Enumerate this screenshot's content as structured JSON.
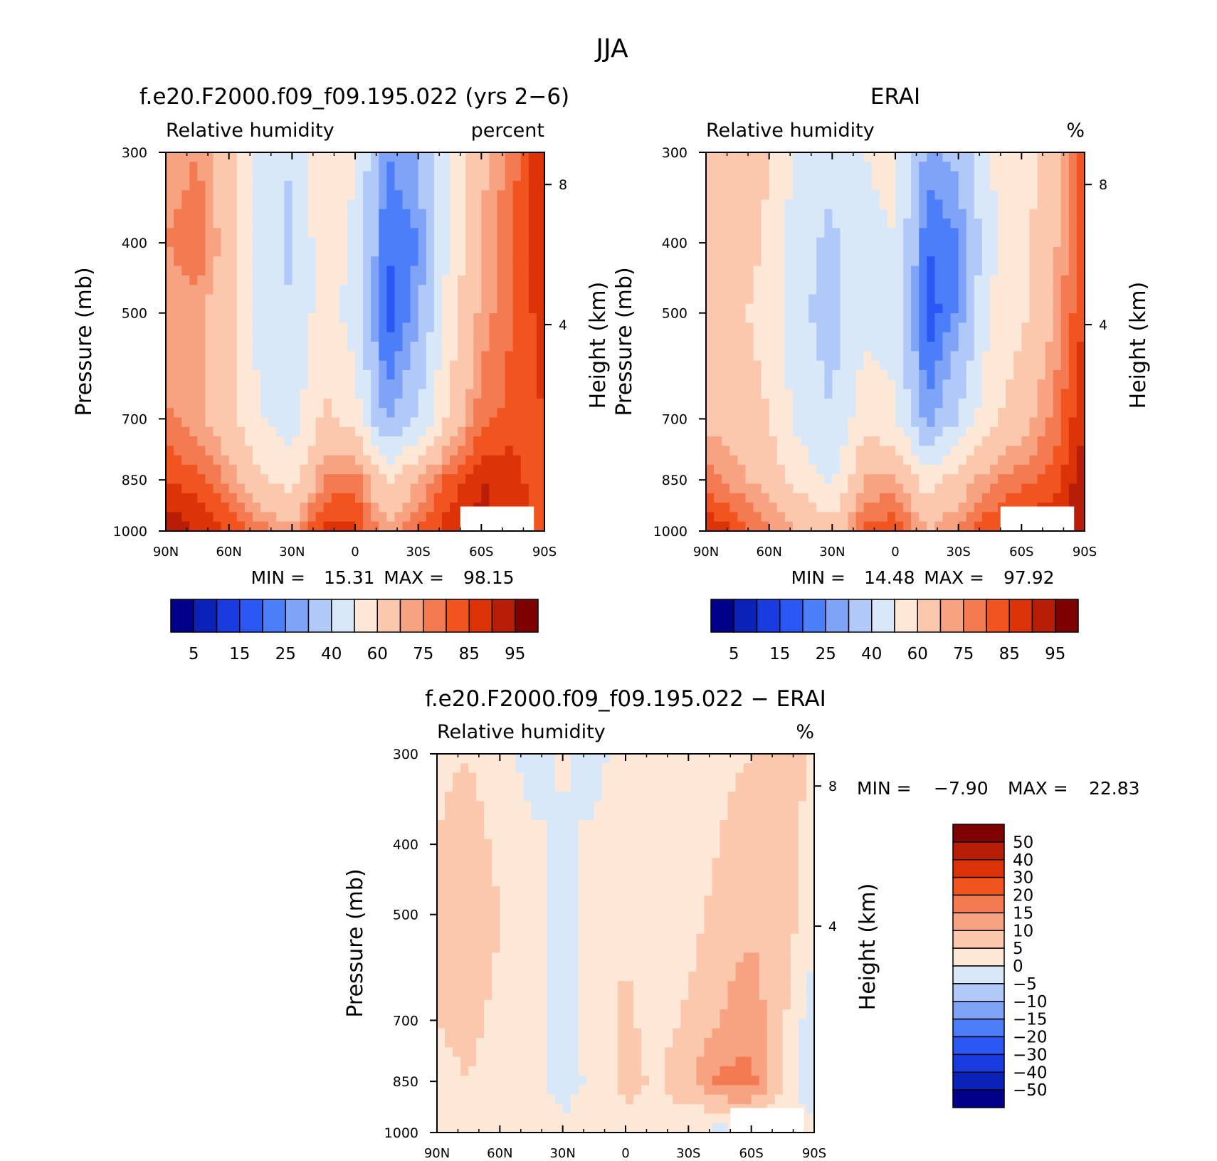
{
  "figure": {
    "title": "JJA"
  },
  "colormaps": {
    "abs": [
      "#00008a",
      "#0a22b8",
      "#1a3be0",
      "#2b58f5",
      "#4c7ef9",
      "#7ea3f7",
      "#b0c9f8",
      "#d8e8f9",
      "#fde8d8",
      "#fbc8ad",
      "#f7a382",
      "#f47a52",
      "#f1541f",
      "#dd3309",
      "#b81d08",
      "#7f0000"
    ],
    "diff": [
      "#00008a",
      "#0a22b8",
      "#1a3be0",
      "#2b58f5",
      "#4c7ef9",
      "#7ea3f7",
      "#b0c9f8",
      "#d8e8f9",
      "#fde8d8",
      "#fbc8ad",
      "#f7a382",
      "#f47a52",
      "#f1541f",
      "#dd3309",
      "#b81d08",
      "#7f0000"
    ]
  },
  "chart_data": [
    {
      "type": "heatmap",
      "title": "f.e20.F2000.f09_f09.195.022 (yrs 2−6)",
      "left_string": "Relative humidity",
      "right_string": "percent",
      "ylabel": "Pressure (mb)",
      "y2label": "Height (km)",
      "x_ticks": [
        "90N",
        "60N",
        "30N",
        "0",
        "30S",
        "60S",
        "90S"
      ],
      "y_ticks": [
        "300",
        "400",
        "500",
        "700",
        "850",
        "1000"
      ],
      "y2_ticks": [
        "8",
        "4"
      ],
      "ylim": [
        1000,
        300
      ],
      "min_label": "MIN =",
      "min_value": "15.31",
      "max_label": "MAX =",
      "max_value": "98.15",
      "colorbar_labels": [
        "5",
        "15",
        "25",
        "40",
        "60",
        "75",
        "85",
        "95"
      ],
      "lat": [
        90,
        75,
        60,
        45,
        30,
        15,
        0,
        -15,
        -30,
        -45,
        -60,
        -75,
        -90
      ],
      "lev": [
        300,
        400,
        500,
        700,
        850,
        1000
      ],
      "values": [
        [
          70,
          75,
          62,
          45,
          40,
          58,
          50,
          25,
          30,
          50,
          68,
          78,
          90
        ],
        [
          75,
          80,
          65,
          45,
          38,
          57,
          48,
          20,
          25,
          52,
          70,
          80,
          90
        ],
        [
          70,
          72,
          62,
          46,
          40,
          56,
          45,
          17,
          28,
          55,
          72,
          80,
          88
        ],
        [
          76,
          72,
          63,
          50,
          45,
          62,
          55,
          28,
          40,
          62,
          78,
          82,
          85
        ],
        [
          85,
          82,
          74,
          62,
          55,
          75,
          78,
          58,
          70,
          82,
          90,
          88,
          80
        ],
        [
          95,
          90,
          84,
          78,
          72,
          88,
          86,
          72,
          80,
          88,
          92,
          88,
          80
        ]
      ]
    },
    {
      "type": "heatmap",
      "title": "ERAI",
      "left_string": "Relative humidity",
      "right_string": "%",
      "ylabel": "Pressure (mb)",
      "y2label": "Height (km)",
      "x_ticks": [
        "90N",
        "60N",
        "30N",
        "0",
        "30S",
        "60S",
        "90S"
      ],
      "y_ticks": [
        "300",
        "400",
        "500",
        "700",
        "850",
        "1000"
      ],
      "y2_ticks": [
        "8",
        "4"
      ],
      "ylim": [
        1000,
        300
      ],
      "min_label": "MIN =",
      "min_value": "14.48",
      "max_label": "MAX =",
      "max_value": "97.92",
      "colorbar_labels": [
        "5",
        "15",
        "25",
        "40",
        "60",
        "75",
        "85",
        "95"
      ],
      "lat": [
        90,
        75,
        60,
        45,
        30,
        15,
        0,
        -15,
        -30,
        -45,
        -60,
        -75,
        -90
      ],
      "lev": [
        300,
        400,
        500,
        700,
        850,
        1000
      ],
      "values": [
        [
          66,
          70,
          60,
          48,
          42,
          50,
          52,
          28,
          32,
          50,
          55,
          66,
          82
        ],
        [
          70,
          66,
          58,
          42,
          38,
          48,
          50,
          20,
          24,
          48,
          56,
          68,
          84
        ],
        [
          64,
          62,
          56,
          42,
          36,
          48,
          46,
          16,
          26,
          50,
          58,
          70,
          86
        ],
        [
          68,
          66,
          60,
          46,
          40,
          55,
          52,
          26,
          40,
          58,
          66,
          76,
          90
        ],
        [
          78,
          72,
          66,
          56,
          48,
          70,
          72,
          55,
          65,
          74,
          78,
          82,
          94
        ],
        [
          90,
          84,
          76,
          70,
          64,
          82,
          84,
          70,
          76,
          84,
          88,
          90,
          96
        ]
      ]
    },
    {
      "type": "heatmap",
      "title": "f.e20.F2000.f09_f09.195.022 − ERAI",
      "left_string": "Relative humidity",
      "right_string": "%",
      "ylabel": "Pressure (mb)",
      "y2label": "Height (km)",
      "x_ticks": [
        "90N",
        "60N",
        "30N",
        "0",
        "30S",
        "60S",
        "90S"
      ],
      "y_ticks": [
        "300",
        "400",
        "500",
        "700",
        "850",
        "1000"
      ],
      "y2_ticks": [
        "8",
        "4"
      ],
      "ylim": [
        1000,
        300
      ],
      "min_label": "MIN =",
      "min_value": "−7.90",
      "max_label": "MAX =",
      "max_value": "22.83",
      "colorbar_labels": [
        "50",
        "40",
        "30",
        "20",
        "15",
        "10",
        "5",
        "0",
        "−5",
        "−10",
        "−15",
        "−20",
        "−30",
        "−40",
        "−50"
      ],
      "lat": [
        90,
        75,
        60,
        45,
        30,
        15,
        0,
        -15,
        -30,
        -45,
        -60,
        -75,
        -90
      ],
      "lev": [
        300,
        400,
        500,
        700,
        850,
        1000
      ],
      "values": [
        [
          4,
          5,
          2,
          -2,
          1,
          -2,
          3,
          1,
          2,
          4,
          5,
          7,
          4
        ],
        [
          5,
          7,
          4,
          1,
          -1,
          1,
          3,
          1,
          2,
          5,
          7,
          8,
          3
        ],
        [
          6,
          8,
          5,
          2,
          -3,
          2,
          4,
          2,
          3,
          7,
          9,
          8,
          2
        ],
        [
          5,
          6,
          4,
          2,
          -3,
          3,
          6,
          3,
          6,
          10,
          13,
          6,
          -4
        ],
        [
          4,
          5,
          3,
          2,
          -2,
          1,
          7,
          4,
          9,
          16,
          17,
          5,
          -5
        ],
        [
          3,
          4,
          3,
          5,
          1,
          4,
          2,
          4,
          0,
          -2,
          -1,
          2,
          2
        ]
      ]
    }
  ]
}
